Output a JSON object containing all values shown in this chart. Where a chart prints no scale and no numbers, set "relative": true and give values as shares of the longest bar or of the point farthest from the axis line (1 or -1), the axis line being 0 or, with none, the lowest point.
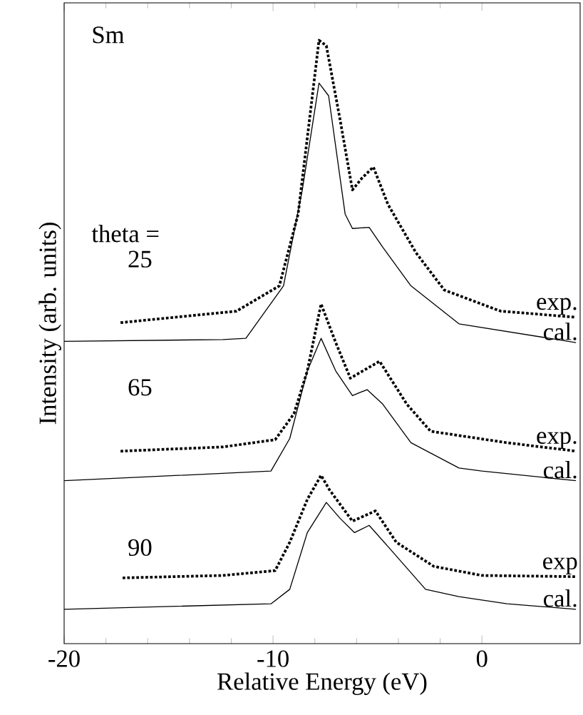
{
  "chart_data": {
    "type": "line",
    "relative": true,
    "xlabel": "Relative Energy (eV)",
    "ylabel": "Intensity (arb. units)",
    "xlim": [
      -20,
      4.7
    ],
    "xticks": [
      -20,
      -10,
      0
    ],
    "annotations": [
      "Sm",
      "theta =",
      "25",
      "65",
      "90"
    ],
    "series": [
      {
        "name": "exp.",
        "color": "#000000",
        "line_style": "dotted",
        "x": [
          -17.3,
          -11.75,
          -9.7,
          -8.8,
          -8.25,
          -7.8,
          -7.45,
          -6.8,
          -6.2,
          -5.76,
          -5.2,
          -4.5,
          -3.16,
          -1.8,
          0.9,
          4.5
        ],
        "values": [
          0.532,
          0.551,
          0.593,
          0.712,
          0.87,
          1.0,
          0.991,
          0.87,
          0.752,
          0.771,
          0.79,
          0.728,
          0.648,
          0.586,
          0.551,
          0.541
        ]
      },
      {
        "name": "cal.",
        "color": "#000000",
        "line_style": "solid",
        "x": [
          -20,
          -12.4,
          -11.3,
          -9.5,
          -8.6,
          -7.8,
          -7.34,
          -6.55,
          -6.2,
          -5.4,
          -4.75,
          -3.4,
          -1.1,
          4.5
        ],
        "values": [
          0.501,
          0.504,
          0.506,
          0.593,
          0.752,
          0.929,
          0.908,
          0.712,
          0.688,
          0.69,
          0.657,
          0.593,
          0.53,
          0.499
        ]
      },
      {
        "name": "exp.",
        "color": "#000000",
        "line_style": "dotted",
        "x": [
          -17.3,
          -12.4,
          -9.9,
          -9.0,
          -8.36,
          -7.7,
          -7.0,
          -6.3,
          -4.9,
          -3.6,
          -2.46,
          1.2,
          4.5
        ],
        "values": [
          0.319,
          0.326,
          0.338,
          0.381,
          0.452,
          0.563,
          0.499,
          0.44,
          0.468,
          0.397,
          0.352,
          0.333,
          0.319
        ]
      },
      {
        "name": "cal.",
        "color": "#000000",
        "line_style": "solid",
        "x": [
          -20,
          -10.1,
          -9.2,
          -8.36,
          -7.7,
          -7.0,
          -6.2,
          -5.5,
          -4.75,
          -3.4,
          -1.1,
          0.0,
          4.5
        ],
        "values": [
          0.27,
          0.286,
          0.34,
          0.452,
          0.506,
          0.452,
          0.411,
          0.421,
          0.397,
          0.333,
          0.291,
          0.286,
          0.27
        ]
      },
      {
        "name": "exp",
        "color": "#000000",
        "line_style": "dotted",
        "x": [
          -17.2,
          -12.4,
          -9.9,
          -9.2,
          -8.36,
          -7.7,
          -7.3,
          -6.2,
          -5.1,
          -4.1,
          -2.3,
          0.0,
          4.5
        ],
        "values": [
          0.109,
          0.113,
          0.121,
          0.168,
          0.239,
          0.279,
          0.255,
          0.203,
          0.22,
          0.168,
          0.128,
          0.113,
          0.111
        ]
      },
      {
        "name": "cal.",
        "color": "#000000",
        "line_style": "solid",
        "x": [
          -20,
          -10.1,
          -9.2,
          -8.36,
          -7.45,
          -6.8,
          -6.1,
          -5.4,
          -4.5,
          -2.7,
          -1.1,
          1.2,
          4.5
        ],
        "values": [
          0.057,
          0.066,
          0.09,
          0.184,
          0.234,
          0.208,
          0.184,
          0.196,
          0.161,
          0.09,
          0.078,
          0.066,
          0.057
        ]
      }
    ]
  }
}
